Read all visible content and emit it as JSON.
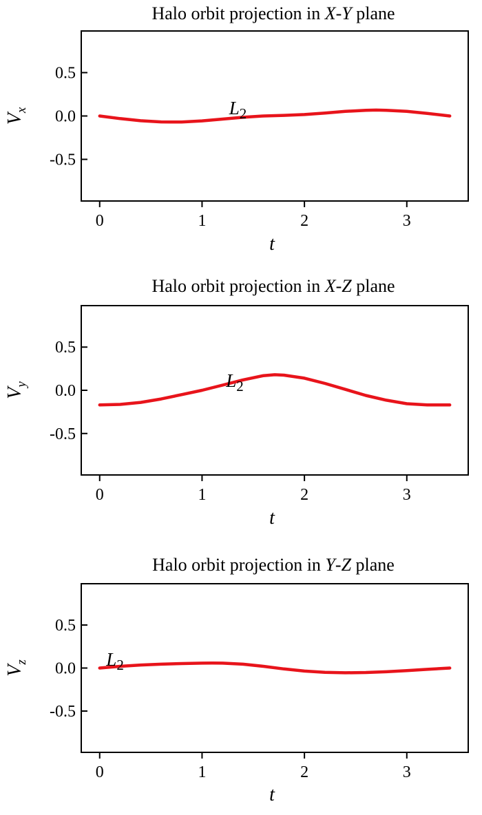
{
  "chart_data": [
    {
      "type": "line",
      "title": [
        "Halo orbit projection in ",
        "X",
        "-",
        "Y",
        " plane"
      ],
      "xlabel": "t",
      "ylabel": {
        "main": "V",
        "sub": "x"
      },
      "xlim": [
        -0.18,
        3.6
      ],
      "ylim": [
        -0.98,
        0.98
      ],
      "xticks": [
        "0",
        "1",
        "2",
        "3"
      ],
      "yticks": [
        "0.5",
        "0.0",
        "-0.5"
      ],
      "annotation": {
        "main": "L",
        "sub": "2",
        "x": 1.35,
        "y": 0.02
      },
      "series": [
        {
          "color": "#e8141b",
          "x": [
            0,
            0.2,
            0.4,
            0.6,
            0.7,
            0.8,
            1.0,
            1.2,
            1.4,
            1.6,
            1.8,
            2.0,
            2.2,
            2.4,
            2.6,
            2.7,
            2.8,
            3.0,
            3.2,
            3.42
          ],
          "y": [
            0.0,
            -0.03,
            -0.055,
            -0.068,
            -0.07,
            -0.069,
            -0.056,
            -0.036,
            -0.015,
            0.0,
            0.007,
            0.017,
            0.034,
            0.053,
            0.066,
            0.068,
            0.066,
            0.053,
            0.03,
            0.0
          ]
        }
      ]
    },
    {
      "type": "line",
      "title": [
        "Halo orbit projection in ",
        "X",
        "-",
        "Z",
        " plane"
      ],
      "xlabel": "t",
      "ylabel": {
        "main": "V",
        "sub": "y"
      },
      "xlim": [
        -0.18,
        3.6
      ],
      "ylim": [
        -0.98,
        0.98
      ],
      "xticks": [
        "0",
        "1",
        "2",
        "3"
      ],
      "yticks": [
        "0.5",
        "0.0",
        "-0.5"
      ],
      "annotation": {
        "main": "L",
        "sub": "2",
        "x": 1.32,
        "y": 0.04
      },
      "series": [
        {
          "color": "#e8141b",
          "x": [
            0,
            0.2,
            0.4,
            0.6,
            0.8,
            1.0,
            1.2,
            1.4,
            1.6,
            1.71,
            1.8,
            2.0,
            2.2,
            2.4,
            2.6,
            2.8,
            3.0,
            3.2,
            3.42
          ],
          "y": [
            -0.17,
            -0.163,
            -0.14,
            -0.1,
            -0.05,
            0.0,
            0.06,
            0.12,
            0.17,
            0.18,
            0.175,
            0.14,
            0.08,
            0.01,
            -0.06,
            -0.115,
            -0.155,
            -0.17,
            -0.17
          ]
        }
      ]
    },
    {
      "type": "line",
      "title": [
        "Halo orbit projection in ",
        "Y",
        "-",
        "Z",
        " plane"
      ],
      "xlabel": "t",
      "ylabel": {
        "main": "V",
        "sub": "z"
      },
      "xlim": [
        -0.18,
        3.6
      ],
      "ylim": [
        -0.98,
        0.98
      ],
      "xticks": [
        "0",
        "1",
        "2",
        "3"
      ],
      "yticks": [
        "0.5",
        "0.0",
        "-0.5"
      ],
      "annotation": {
        "main": "L",
        "sub": "2",
        "x": 0.15,
        "y": 0.03
      },
      "series": [
        {
          "color": "#e8141b",
          "x": [
            0,
            0.2,
            0.4,
            0.6,
            0.8,
            1.0,
            1.1,
            1.2,
            1.4,
            1.6,
            1.8,
            2.0,
            2.2,
            2.4,
            2.6,
            2.8,
            3.0,
            3.2,
            3.42
          ],
          "y": [
            0.0,
            0.02,
            0.035,
            0.045,
            0.052,
            0.057,
            0.058,
            0.057,
            0.045,
            0.02,
            -0.01,
            -0.035,
            -0.05,
            -0.055,
            -0.052,
            -0.043,
            -0.03,
            -0.015,
            0.0
          ]
        }
      ]
    }
  ]
}
